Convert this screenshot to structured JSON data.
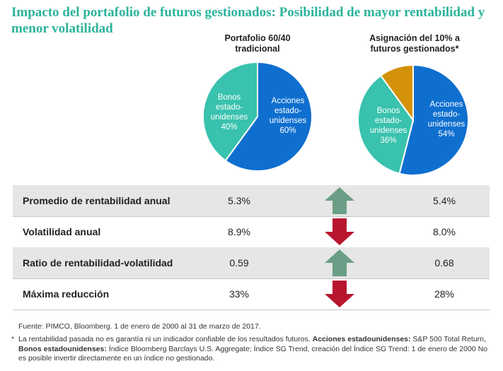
{
  "title": {
    "line1": "Impacto del portafolio de futuros gestionados: Posibilidad de mayor rentabilidad y",
    "line2": "menor volatilidad"
  },
  "chart_data": [
    {
      "type": "pie",
      "title_lines": [
        "Portafolio 60/40",
        "tradicional"
      ],
      "slices": [
        {
          "lines": [
            "Acciones",
            "estado-",
            "unidenses",
            "60%"
          ],
          "value": 60,
          "color": "#0f6fcf"
        },
        {
          "lines": [
            "Bonos",
            "estado-",
            "unidenses",
            "40%"
          ],
          "value": 40,
          "color": "#39c2ad"
        }
      ]
    },
    {
      "type": "pie",
      "title_lines": [
        "Asignación del 10% a",
        "futuros gestionados*"
      ],
      "slices": [
        {
          "lines": [
            "Acciones",
            "estado-",
            "unidenses",
            "54%"
          ],
          "value": 54,
          "color": "#0f6fcf"
        },
        {
          "lines": [
            "Bonos",
            "estado-",
            "unidenses",
            "36%"
          ],
          "value": 36,
          "color": "#39c2ad"
        },
        {
          "lines": [],
          "value": 10,
          "color": "#d4910a"
        }
      ]
    },
    {
      "type": "table",
      "rows": [
        {
          "label": "Promedio de rentabilidad anual",
          "v1": "5.3%",
          "v2": "5.4%",
          "direction": "up"
        },
        {
          "label": "Volatilidad anual",
          "v1": "8.9%",
          "v2": "8.0%",
          "direction": "down"
        },
        {
          "label": "Ratio de rentabilidad-volatilidad",
          "v1": "0.59",
          "v2": "0.68",
          "direction": "up"
        },
        {
          "label": "Máxima reducción",
          "v1": "33%",
          "v2": "28%",
          "direction": "down"
        }
      ]
    }
  ],
  "colors": {
    "up_arrow": "#6b9e86",
    "down_arrow": "#b8162f",
    "title": "#2bb39c"
  },
  "source": "Fuente: PIMCO, Bloomberg. 1 de enero de 2000 al 31 de marzo de 2017.",
  "footnote": {
    "asterisk": "*",
    "p1": "La rentabilidad pasada no es garantía ni un indicador confiable de los resultados futuros. ",
    "b1": "Acciones estadounidenses:",
    "p2": " S&P 500 Total Return, ",
    "b2": "Bonos estadounidenses:",
    "p3": " Índice Bloomberg Barclays U.S. Aggregate; Índice SG Trend, creación del Índice SG Trend: 1 de enero de 2000 No es posible invertir directamente en un índice no gestionado."
  }
}
